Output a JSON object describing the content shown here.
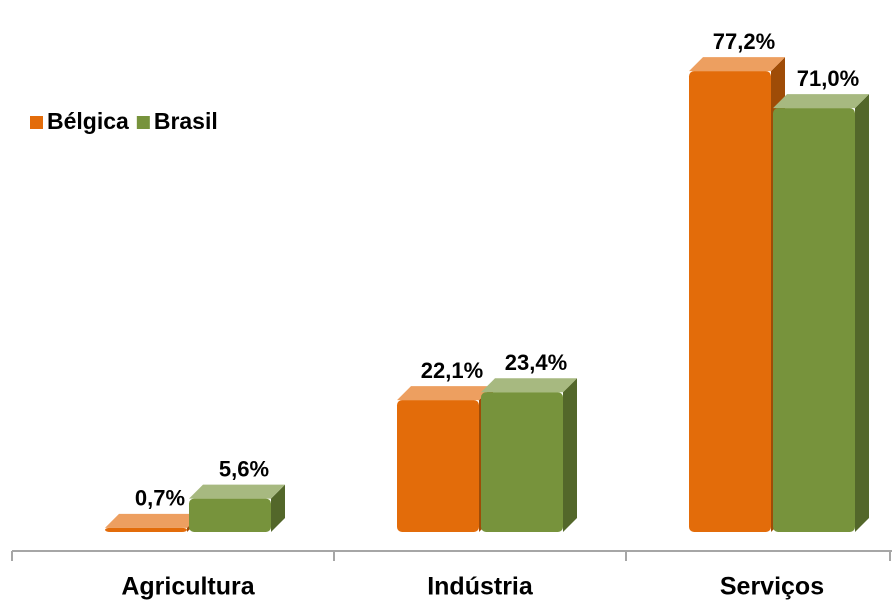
{
  "chart_data": {
    "type": "bar3d",
    "categories": [
      "Agricultura",
      "Indústria",
      "Serviços"
    ],
    "series": [
      {
        "name": "Bélgica",
        "color": "#e36c0a",
        "values": [
          0.7,
          22.1,
          77.2
        ],
        "value_labels": [
          "0,7%",
          "22,1%",
          "77,2%"
        ]
      },
      {
        "name": "Brasil",
        "color": "#77933c",
        "values": [
          5.6,
          23.4,
          71.0
        ],
        "value_labels": [
          "5,6%",
          "23,4%",
          "71,0%"
        ]
      }
    ],
    "legend": "left"
  }
}
